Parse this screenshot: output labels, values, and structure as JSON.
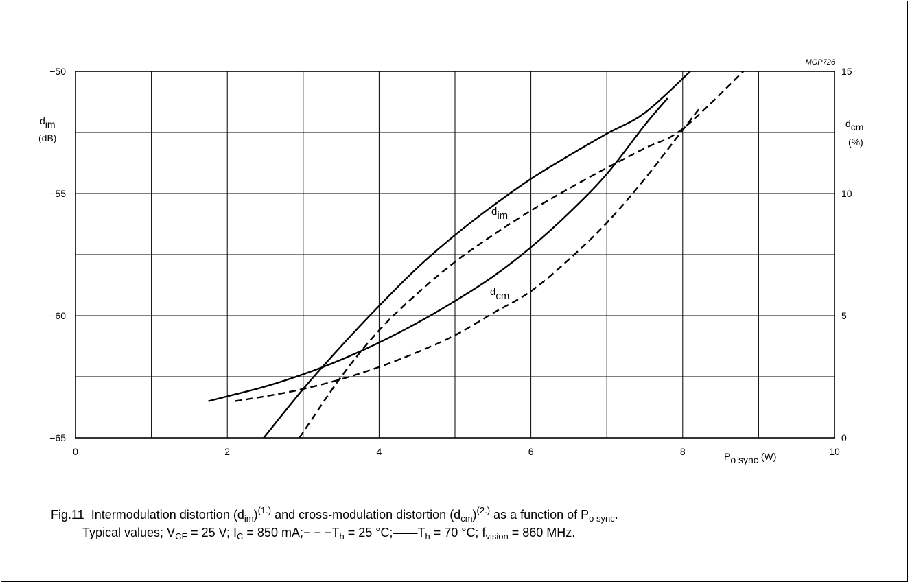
{
  "chart_data": {
    "type": "line",
    "figure_id": "MGP726",
    "x_axis": {
      "label": "P",
      "label_sub": "o sync",
      "label_unit": "(W)",
      "range": [
        0,
        10
      ],
      "ticks": [
        0,
        2,
        4,
        6,
        8,
        10
      ]
    },
    "y_left": {
      "label": "d",
      "label_sub": "im",
      "unit": "(dB)",
      "range": [
        -65,
        -50
      ],
      "ticks": [
        -65,
        -60,
        -55,
        -50
      ],
      "tick_labels": [
        "−65",
        "−60",
        "−55",
        "−50"
      ]
    },
    "y_right": {
      "label": "d",
      "label_sub": "cm",
      "unit": "(%)",
      "range": [
        0,
        15
      ],
      "ticks": [
        0,
        5,
        10,
        15
      ]
    },
    "grid": true,
    "series": [
      {
        "name": "dim",
        "label_text": "d",
        "label_sub": "im",
        "condition": "Th = 70 °C",
        "style": "solid",
        "axis": "left",
        "x": [
          2.48,
          3.0,
          3.5,
          4.0,
          4.5,
          5.0,
          5.5,
          6.0,
          6.5,
          7.0,
          7.5,
          8.1
        ],
        "y": [
          -65.0,
          -63.0,
          -61.25,
          -59.6,
          -58.05,
          -56.7,
          -55.5,
          -54.4,
          -53.45,
          -52.55,
          -51.7,
          -50.0
        ]
      },
      {
        "name": "dim",
        "condition": "Th = 25 °C",
        "style": "dashed",
        "axis": "left",
        "x": [
          2.95,
          3.5,
          4.0,
          4.5,
          5.0,
          5.5,
          6.0,
          6.5,
          7.0,
          7.5,
          8.0,
          8.8
        ],
        "y": [
          -65.0,
          -62.5,
          -60.6,
          -59.1,
          -57.8,
          -56.7,
          -55.7,
          -54.8,
          -53.95,
          -53.15,
          -52.35,
          -50.0
        ]
      },
      {
        "name": "dcm",
        "label_text": "d",
        "label_sub": "cm",
        "condition": "Th = 70 °C",
        "style": "solid",
        "axis": "right",
        "x": [
          1.75,
          2.0,
          2.5,
          3.0,
          3.5,
          4.0,
          4.5,
          5.0,
          5.5,
          6.0,
          6.5,
          7.0,
          7.5,
          7.8
        ],
        "y": [
          1.5,
          1.7,
          2.1,
          2.6,
          3.2,
          3.9,
          4.7,
          5.6,
          6.6,
          7.8,
          9.2,
          10.8,
          12.8,
          13.9
        ]
      },
      {
        "name": "dcm",
        "condition": "Th = 25 °C",
        "style": "dashed",
        "axis": "right",
        "x": [
          2.1,
          2.5,
          3.0,
          3.5,
          4.0,
          4.5,
          5.0,
          5.5,
          6.0,
          6.5,
          7.0,
          7.5,
          8.0,
          8.25
        ],
        "y": [
          1.5,
          1.7,
          2.0,
          2.4,
          2.9,
          3.5,
          4.2,
          5.1,
          6.0,
          7.3,
          8.8,
          10.6,
          12.6,
          13.6
        ]
      }
    ]
  },
  "caption": {
    "fig_label": "Fig.11",
    "l1_a": "Intermodulation distortion (d",
    "l1_a_sub": "im",
    "l1_a_close": ")",
    "l1_a_sup": "(1.)",
    "l1_b": " and cross-modulation distortion (d",
    "l1_b_sub": "cm",
    "l1_b_close": ")",
    "l1_b_sup": "(2.)",
    "l1_c": " as a function of P",
    "l1_c_sub": "o sync",
    "l1_c_end": ".",
    "l2_a": "Typical values; V",
    "l2_a_sub": "CE",
    "l2_b": " = 25 V; I",
    "l2_b_sub": "C",
    "l2_c": " = 850 mA;− − −T",
    "l2_c_sub": "h",
    "l2_d": " = 25 °C;——T",
    "l2_d_sub": "h",
    "l2_e": " = 70 °C; f",
    "l2_e_sub": "vision",
    "l2_f": " = 860 MHz."
  },
  "colors": {
    "line": "#000000",
    "grid": "#000000",
    "background": "#ffffff"
  }
}
